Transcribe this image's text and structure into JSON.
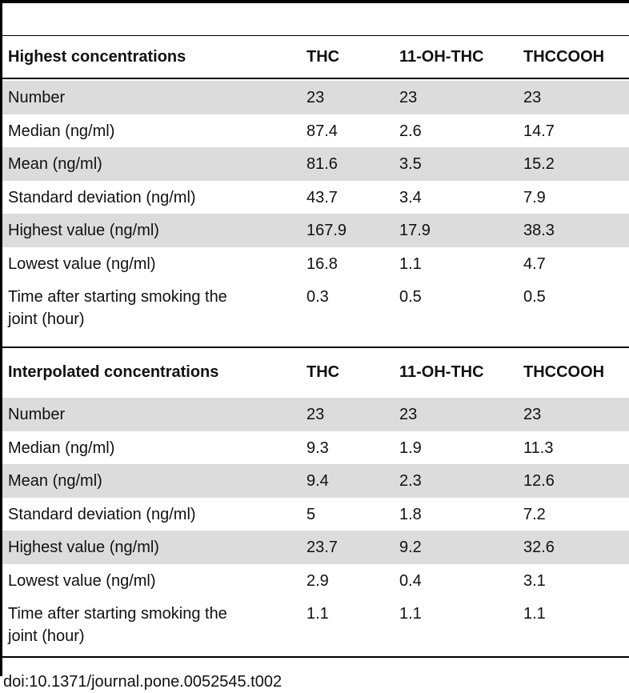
{
  "table": {
    "sections": [
      {
        "header": [
          "Highest concentrations",
          "THC",
          "11-OH-THC",
          "THCCOOH"
        ],
        "rows": [
          [
            "Number",
            "23",
            "23",
            "23"
          ],
          [
            "Median (ng/ml)",
            "87.4",
            "2.6",
            "14.7"
          ],
          [
            "Mean (ng/ml)",
            "81.6",
            "3.5",
            "15.2"
          ],
          [
            "Standard deviation (ng/ml)",
            "43.7",
            "3.4",
            "7.9"
          ],
          [
            "Highest value (ng/ml)",
            "167.9",
            "17.9",
            "38.3"
          ],
          [
            "Lowest value (ng/ml)",
            "16.8",
            "1.1",
            "4.7"
          ],
          [
            "Time after starting smoking the joint (hour)",
            "0.3",
            "0.5",
            "0.5"
          ]
        ]
      },
      {
        "header": [
          "Interpolated concentrations",
          "THC",
          "11-OH-THC",
          "THCCOOH"
        ],
        "rows": [
          [
            "Number",
            "23",
            "23",
            "23"
          ],
          [
            "Median (ng/ml)",
            "9.3",
            "1.9",
            "11.3"
          ],
          [
            "Mean (ng/ml)",
            "9.4",
            "2.3",
            "12.6"
          ],
          [
            "Standard deviation (ng/ml)",
            "5",
            "1.8",
            "7.2"
          ],
          [
            "Highest value (ng/ml)",
            "23.7",
            "9.2",
            "32.6"
          ],
          [
            "Lowest value (ng/ml)",
            "2.9",
            "0.4",
            "3.1"
          ],
          [
            "Time after starting smoking the joint (hour)",
            "1.1",
            "1.1",
            "1.1"
          ]
        ]
      }
    ],
    "footer": "doi:10.1371/journal.pone.0052545.t002"
  }
}
